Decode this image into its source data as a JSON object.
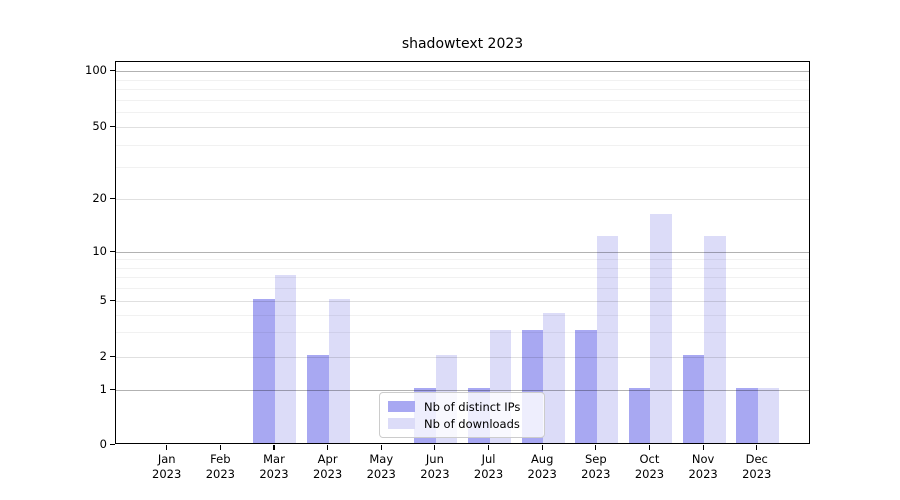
{
  "chart_data": {
    "type": "bar",
    "title": "shadowtext 2023",
    "categories": [
      "Jan",
      "Feb",
      "Mar",
      "Apr",
      "May",
      "Jun",
      "Jul",
      "Aug",
      "Sep",
      "Oct",
      "Nov",
      "Dec"
    ],
    "year": "2023",
    "series": [
      {
        "name": "Nb of distinct IPs",
        "color": "#a8a8f2",
        "values": [
          0,
          0,
          5,
          2,
          0,
          1,
          1,
          3,
          3,
          1,
          2,
          1
        ]
      },
      {
        "name": "Nb of downloads",
        "color": "#dcdcf8",
        "values": [
          0,
          0,
          7,
          5,
          0,
          2,
          3,
          4,
          12,
          16,
          12,
          1
        ]
      }
    ],
    "y_ticks": [
      0,
      1,
      2,
      5,
      10,
      20,
      50,
      100
    ],
    "y_major_ticks": [
      1,
      10,
      100
    ],
    "y_minor_gridlines": [
      3,
      4,
      6,
      7,
      8,
      9,
      30,
      40,
      60,
      70,
      80,
      90
    ],
    "ylim": [
      0,
      100
    ],
    "y_scale": "symlog",
    "xlabel": "",
    "ylabel": "",
    "grid": true,
    "legend_position": "lower center inside plot"
  },
  "colors": {
    "background": "#ffffff",
    "spine": "#000000",
    "bar_distinct_ips": "#a8a8f2",
    "bar_downloads": "#dcdcf8"
  }
}
